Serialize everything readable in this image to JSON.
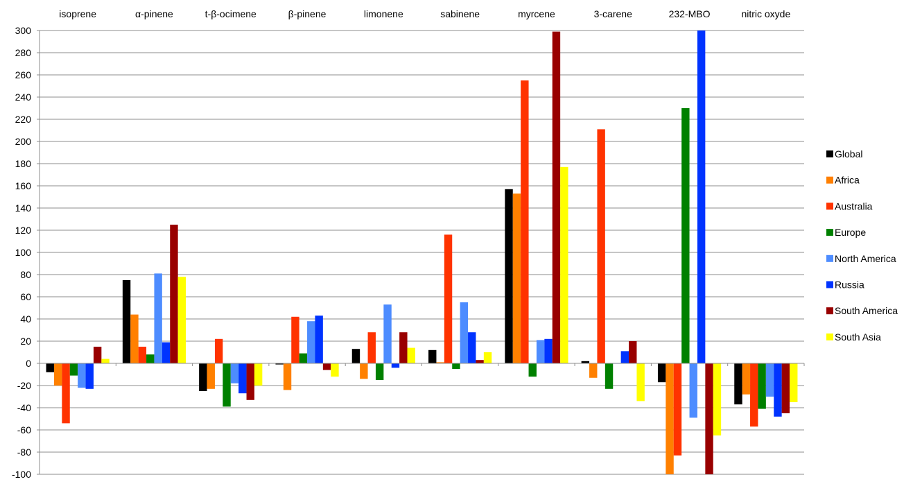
{
  "chart_data": {
    "type": "bar",
    "title": "",
    "xlabel": "",
    "ylabel": "",
    "ylim": [
      -100,
      300
    ],
    "y_ticks": [
      300,
      280,
      260,
      240,
      220,
      200,
      180,
      160,
      140,
      120,
      100,
      80,
      60,
      40,
      20,
      0,
      -20,
      -40,
      -60,
      -80,
      -100
    ],
    "category_labels_position": "top",
    "grid": true,
    "legend_position": "right",
    "categories": [
      "isoprene",
      "α-pinene",
      "t-β-ocimene",
      "β-pinene",
      "limonene",
      "sabinene",
      "myrcene",
      "3-carene",
      "232-MBO",
      "nitric oxyde"
    ],
    "series": [
      {
        "name": "Global",
        "color": "#000000",
        "values": [
          -8,
          75,
          -25,
          -1,
          13,
          12,
          157,
          2,
          -17,
          -37
        ]
      },
      {
        "name": "Africa",
        "color": "#FF8000",
        "values": [
          -20,
          44,
          -23,
          -24,
          -14,
          1,
          153,
          -13,
          -100,
          -28
        ]
      },
      {
        "name": "Australia",
        "color": "#FF3300",
        "values": [
          -54,
          15,
          22,
          42,
          28,
          116,
          255,
          211,
          -83,
          -57
        ]
      },
      {
        "name": "Europe",
        "color": "#008000",
        "values": [
          -11,
          8,
          -39,
          9,
          -15,
          -5,
          -12,
          -23,
          230,
          -41
        ]
      },
      {
        "name": "North America",
        "color": "#4D8CFF",
        "values": [
          -22,
          81,
          -18,
          38,
          53,
          55,
          21,
          0,
          -49,
          -30
        ]
      },
      {
        "name": "Russia",
        "color": "#0033FF",
        "values": [
          -23,
          19,
          -27,
          43,
          -4,
          28,
          22,
          11,
          300,
          -48
        ]
      },
      {
        "name": "South America",
        "color": "#990000",
        "values": [
          15,
          125,
          -33,
          -6,
          28,
          3,
          299,
          20,
          -100,
          -45
        ]
      },
      {
        "name": "South Asia",
        "color": "#FFFF00",
        "values": [
          4,
          78,
          -20,
          -12,
          14,
          10,
          177,
          -34,
          -65,
          -35
        ]
      }
    ]
  }
}
